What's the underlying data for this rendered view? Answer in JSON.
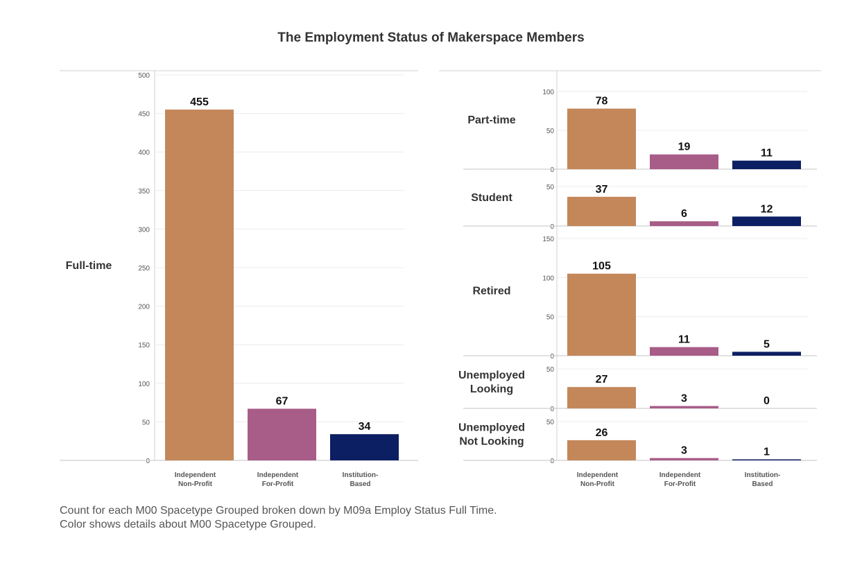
{
  "title": "The Employment Status of Makerspace Members",
  "footnote": {
    "line1": "Count  for each M00 Spacetype Grouped broken down by M09a Employ Status Full Time.",
    "line2": "Color shows details about M00 Spacetype Grouped."
  },
  "colors": {
    "Independent Non-Profit": "#c4875a",
    "Independent For-Profit": "#a85c88",
    "Institution-Based": "#0d1f63"
  },
  "chart_data": {
    "type": "bar",
    "categories": [
      "Independent Non-Profit",
      "Independent For-Profit",
      "Institution-Based"
    ],
    "category_labels": [
      [
        "Independent",
        "Non-Profit"
      ],
      [
        "Independent",
        "For-Profit"
      ],
      [
        "Institution-",
        "Based"
      ]
    ],
    "panels": [
      {
        "name": "Full-time",
        "label_lines": [
          "Full-time"
        ],
        "values": [
          455,
          67,
          34
        ],
        "ylim": [
          0,
          500
        ],
        "ticks": [
          0,
          50,
          100,
          150,
          200,
          250,
          300,
          350,
          400,
          450,
          500
        ]
      },
      {
        "name": "Part-time",
        "label_lines": [
          "Part-time"
        ],
        "values": [
          78,
          19,
          11
        ],
        "ylim": [
          0,
          100
        ],
        "ticks": [
          0,
          50,
          100
        ]
      },
      {
        "name": "Student",
        "label_lines": [
          "Student"
        ],
        "values": [
          37,
          6,
          12
        ],
        "ylim": [
          0,
          50
        ],
        "ticks": [
          0,
          50
        ]
      },
      {
        "name": "Retired",
        "label_lines": [
          "Retired"
        ],
        "values": [
          105,
          11,
          5
        ],
        "ylim": [
          0,
          150
        ],
        "ticks": [
          0,
          50,
          100,
          150
        ]
      },
      {
        "name": "Unemployed Looking",
        "label_lines": [
          "Unemployed",
          "Looking"
        ],
        "values": [
          27,
          3,
          0
        ],
        "ylim": [
          0,
          50
        ],
        "ticks": [
          0,
          50
        ]
      },
      {
        "name": "Unemployed Not Looking",
        "label_lines": [
          "Unemployed",
          "Not Looking"
        ],
        "values": [
          26,
          3,
          1
        ],
        "ylim": [
          0,
          50
        ],
        "ticks": [
          0,
          50
        ]
      }
    ]
  }
}
